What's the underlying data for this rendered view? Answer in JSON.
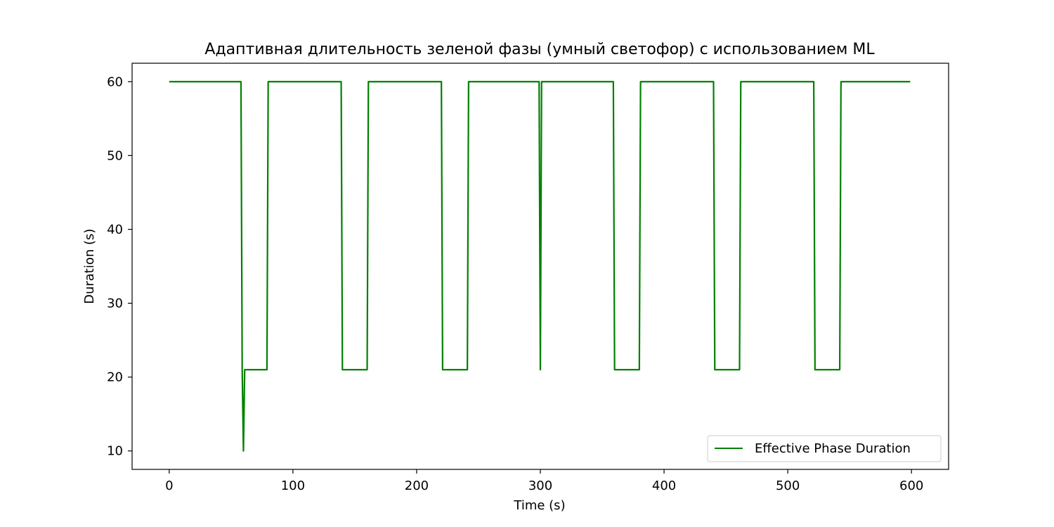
{
  "chart_data": {
    "type": "line",
    "title": "Адаптивная длительность зеленой фазы (умный светофор) с использованием ML",
    "xlabel": "Time (s)",
    "ylabel": "Duration (s)",
    "xlim": [
      -30,
      630
    ],
    "ylim": [
      7.5,
      62.5
    ],
    "xticks": [
      0,
      100,
      200,
      300,
      400,
      500,
      600
    ],
    "yticks": [
      10,
      20,
      30,
      40,
      50,
      60
    ],
    "grid": false,
    "legend_position": "bottom-right",
    "series": [
      {
        "name": "Effective Phase Duration",
        "color": "#008000",
        "x": [
          0,
          58,
          59,
          60,
          61,
          79,
          80,
          139,
          140,
          160,
          161,
          220,
          221,
          241,
          242,
          299,
          300,
          301,
          359,
          360,
          380,
          381,
          440,
          441,
          461,
          462,
          521,
          522,
          542,
          543,
          599
        ],
        "y": [
          60,
          60,
          21,
          10,
          21,
          21,
          60,
          60,
          21,
          21,
          60,
          60,
          21,
          21,
          60,
          60,
          21,
          60,
          60,
          21,
          21,
          60,
          60,
          21,
          21,
          60,
          60,
          21,
          21,
          60,
          60
        ]
      }
    ]
  }
}
